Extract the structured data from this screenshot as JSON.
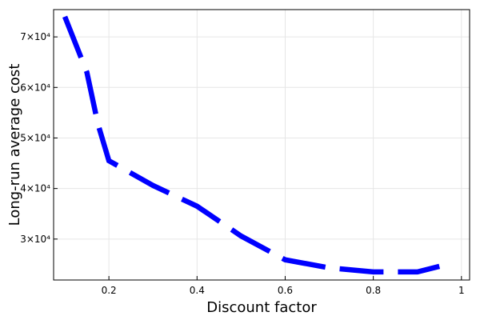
{
  "chart_data": {
    "type": "line",
    "x_label": "Discount factor",
    "y_label": "Long-run average cost",
    "x": [
      0.1,
      0.15,
      0.175,
      0.2,
      0.3,
      0.4,
      0.5,
      0.6,
      0.7,
      0.8,
      0.9,
      0.95
    ],
    "series": [
      {
        "color": "#0000ff",
        "values": [
          74000,
          63000,
          52800,
          45500,
          40600,
          36500,
          30600,
          25900,
          24300,
          23500,
          23500,
          24600
        ]
      }
    ],
    "xlim": [
      0.0745,
      1.0185
    ],
    "xticks": [
      0.2,
      0.4,
      0.6,
      0.8,
      1.0
    ],
    "ylim": [
      21900,
      75400
    ],
    "yticks": [
      {
        "value": 30000,
        "label": "3×10⁴"
      },
      {
        "value": 40000,
        "label": "4×10⁴"
      },
      {
        "value": 50000,
        "label": "5×10⁴"
      },
      {
        "value": 60000,
        "label": "6×10⁴"
      },
      {
        "value": 70000,
        "label": "7×10⁴"
      }
    ],
    "grid": true
  }
}
